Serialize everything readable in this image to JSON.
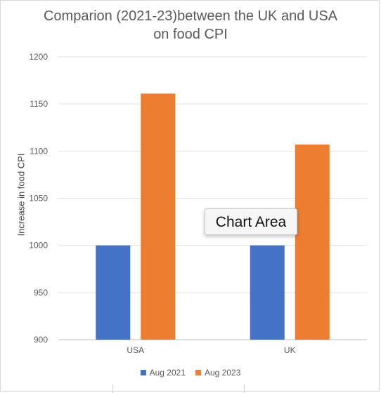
{
  "chart_data": {
    "type": "bar",
    "title_lines": [
      "Comparion (2021-23)between the UK and USA",
      "on food CPI"
    ],
    "ylabel": "Increase in food CPI",
    "xlabel": "",
    "categories": [
      "USA",
      "UK"
    ],
    "ylim": [
      900,
      1200
    ],
    "yticks": [
      900,
      950,
      1000,
      1050,
      1100,
      1150,
      1200
    ],
    "grid": true,
    "legend_position": "bottom",
    "series": [
      {
        "name": "Aug 2021",
        "color": "#4472c4",
        "values": [
          1000,
          1000
        ]
      },
      {
        "name": "Aug 2023",
        "color": "#ed7d31",
        "values": [
          1161,
          1107
        ]
      }
    ]
  },
  "tooltip": {
    "label": "Chart Area"
  }
}
